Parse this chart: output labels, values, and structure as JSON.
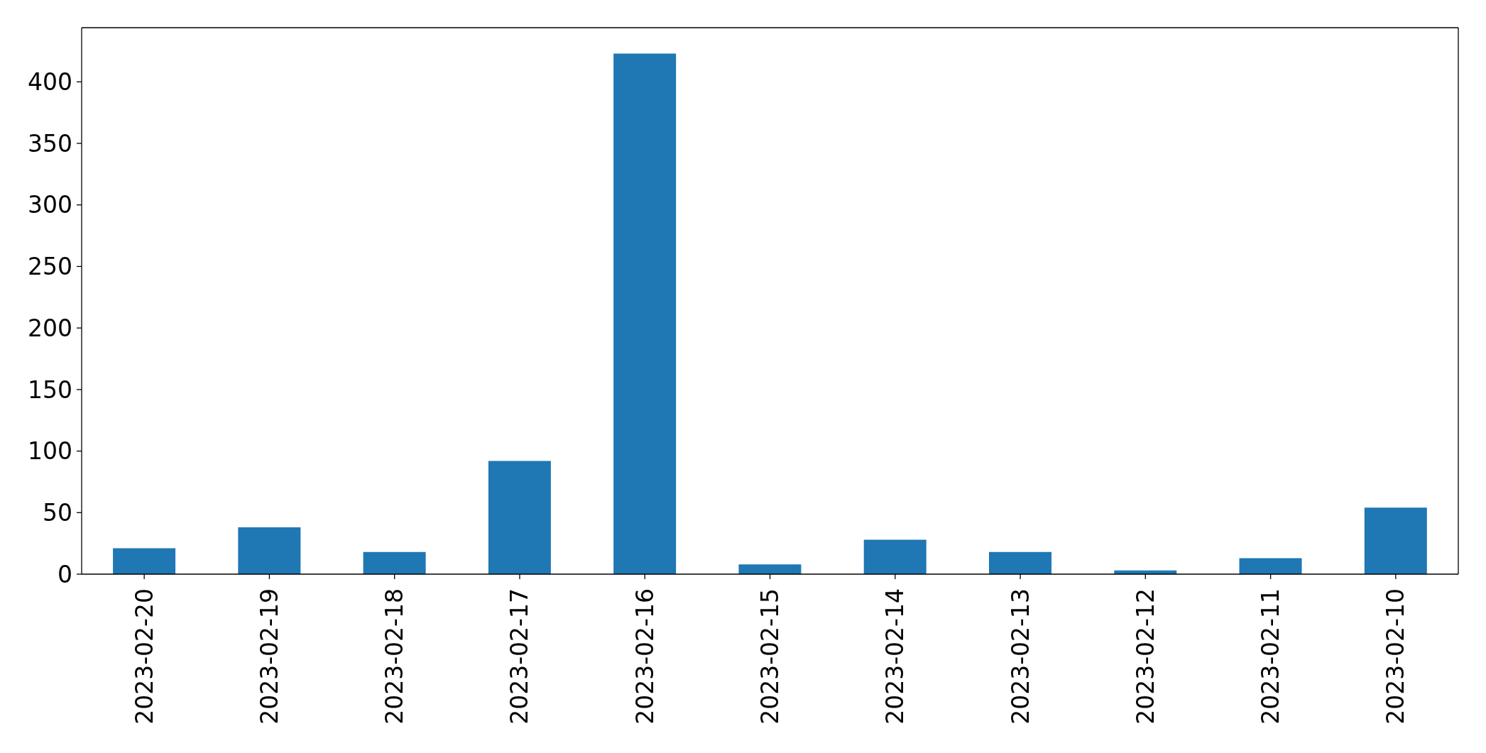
{
  "chart_data": {
    "type": "bar",
    "categories": [
      "2023-02-20",
      "2023-02-19",
      "2023-02-18",
      "2023-02-17",
      "2023-02-16",
      "2023-02-15",
      "2023-02-14",
      "2023-02-13",
      "2023-02-12",
      "2023-02-11",
      "2023-02-10"
    ],
    "values": [
      21,
      38,
      18,
      92,
      423,
      8,
      28,
      18,
      3,
      13,
      54
    ],
    "color": "#1f77b4",
    "ylim": [
      0,
      444
    ],
    "yticks": [
      0,
      50,
      100,
      150,
      200,
      250,
      300,
      350,
      400
    ]
  }
}
